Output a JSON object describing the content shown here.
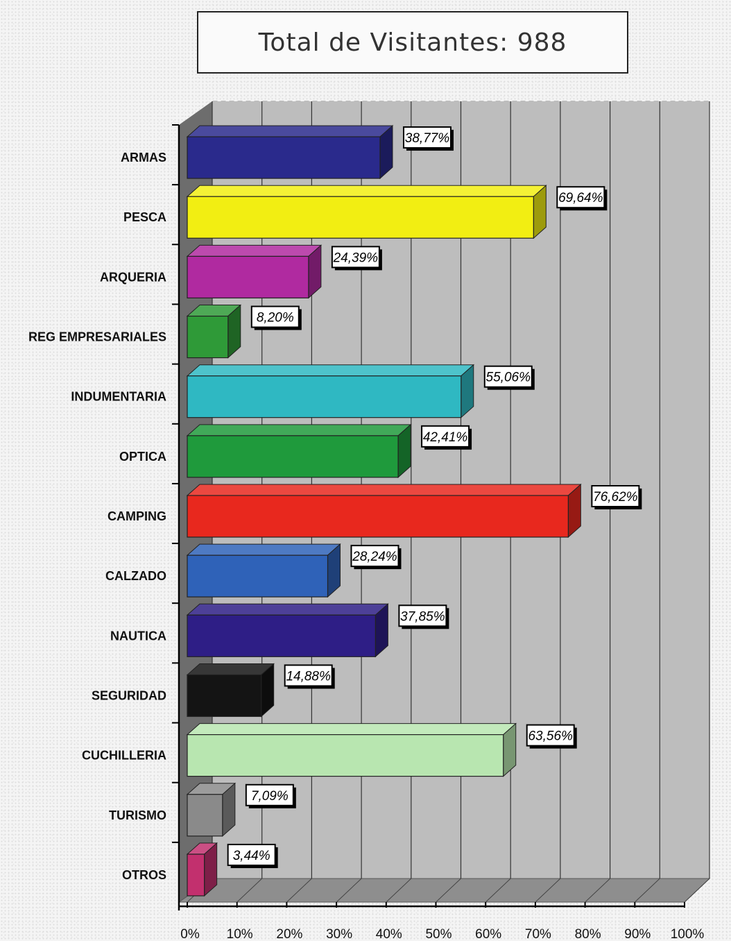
{
  "chart_data": {
    "type": "bar",
    "orientation": "horizontal",
    "title": "Total de Visitantes: 988",
    "categories": [
      "ARMAS",
      "PESCA",
      "ARQUERIA",
      "REG EMPRESARIALES",
      "INDUMENTARIA",
      "OPTICA",
      "CAMPING",
      "CALZADO",
      "NAUTICA",
      "SEGURIDAD",
      "CUCHILLERIA",
      "TURISMO",
      "OTROS"
    ],
    "values": [
      38.77,
      69.64,
      24.39,
      8.2,
      55.06,
      42.41,
      76.62,
      28.24,
      37.85,
      14.88,
      63.56,
      7.09,
      3.44
    ],
    "data_labels": [
      "38,77%",
      "69,64%",
      "24,39%",
      "8,20%",
      "55,06%",
      "42,41%",
      "76,62%",
      "28,24%",
      "37,85%",
      "14,88%",
      "63,56%",
      "7,09%",
      "3,44%"
    ],
    "colors": [
      "#2a2a8c",
      "#f2ee12",
      "#b02aa0",
      "#2f9a38",
      "#2fb8c2",
      "#1f9a3c",
      "#e8281e",
      "#2f62b8",
      "#2e1e86",
      "#141414",
      "#b8e6b0",
      "#8a8a8a",
      "#c2306e"
    ],
    "xlim": [
      0,
      100
    ],
    "x_ticks": [
      "0%",
      "10%",
      "20%",
      "30%",
      "40%",
      "50%",
      "60%",
      "70%",
      "80%",
      "90%",
      "100%"
    ],
    "grid": true,
    "style": "3d"
  }
}
